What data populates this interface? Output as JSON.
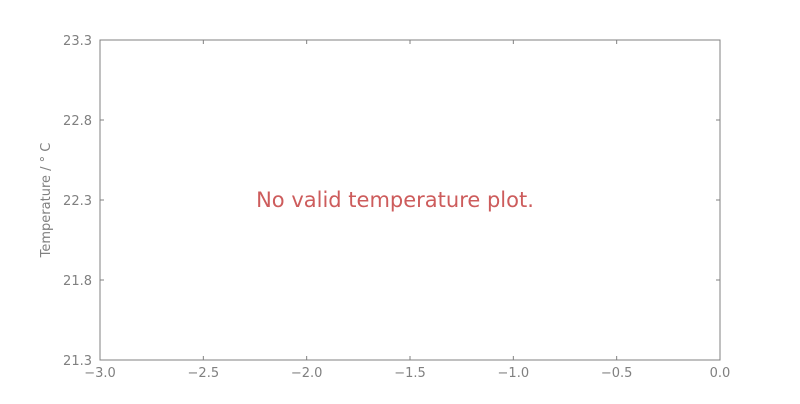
{
  "chart_data": {
    "type": "line",
    "title": "",
    "xlabel": "",
    "ylabel": "Temperature / ° C",
    "xlim": [
      -3.0,
      0.0
    ],
    "ylim": [
      21.3,
      23.3
    ],
    "x_ticks": [
      -3.0,
      -2.5,
      -2.0,
      -1.5,
      -1.0,
      -0.5,
      0.0
    ],
    "x_tick_labels": [
      "−3.0",
      "−2.5",
      "−2.0",
      "−1.5",
      "−1.0",
      "−0.5",
      "0.0"
    ],
    "y_ticks": [
      21.3,
      21.8,
      22.3,
      22.8,
      23.3
    ],
    "y_tick_labels": [
      "21.3",
      "21.8",
      "22.3",
      "22.8",
      "23.3"
    ],
    "series": [],
    "annotation": "No valid temperature plot.",
    "grid": false,
    "colors": {
      "axes": "#808080",
      "tick_label": "#808080",
      "annotation": "#cd5c5c",
      "background": "#ffffff"
    }
  }
}
